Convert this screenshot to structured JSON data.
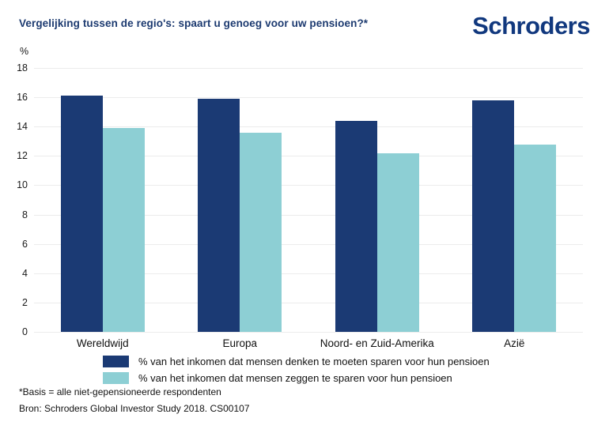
{
  "header": {
    "title": "Vergelijking tussen de regio's: spaart u genoeg voor uw pensioen?*",
    "logo_text": "Schroders"
  },
  "chart_data": {
    "type": "bar",
    "title": "Vergelijking tussen de regio's: spaart u genoeg voor uw pensioen?*",
    "unit_label": "%",
    "categories": [
      "Wereldwijd",
      "Europa",
      "Noord- en Zuid-Amerika",
      "Azië"
    ],
    "series": [
      {
        "name": "% van het inkomen dat mensen denken te moeten sparen voor hun pensioen",
        "color": "#1b3a74",
        "values": [
          16.1,
          15.9,
          14.4,
          15.8
        ]
      },
      {
        "name": "% van het inkomen dat mensen zeggen te sparen voor hun pensioen",
        "color": "#8dcfd4",
        "values": [
          13.9,
          13.6,
          12.2,
          12.8
        ]
      }
    ],
    "xlabel": "",
    "ylabel": "%",
    "ylim": [
      0,
      18
    ],
    "ytick_step": 2,
    "grid": true,
    "legend_position": "bottom"
  },
  "footnotes": {
    "basis": "*Basis = alle niet-gepensioneerde respondenten",
    "source": "Bron: Schroders Global Investor Study 2018. CS00107"
  },
  "colors": {
    "navy_bar": "#1b3a74",
    "teal_bar": "#8dcfd4",
    "title_navy": "#1c3a70",
    "logo_blue": "#11387e",
    "gridline": "#ececec",
    "text": "#111111"
  }
}
